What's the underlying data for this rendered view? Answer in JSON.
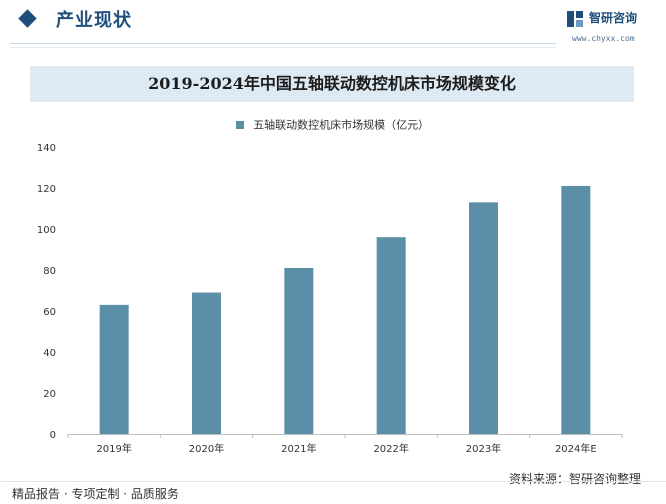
{
  "header": {
    "section_title": "产业现状",
    "logo_name": "智研咨询",
    "logo_url": "www.chyxx.com"
  },
  "colors": {
    "bar": "#5b8fa8",
    "accent": "#1f4e7a",
    "title_band": "#dde9f3"
  },
  "footer": {
    "left": "精品报告 · 专项定制 · 品质服务",
    "right": "资料来源：智研咨询整理"
  },
  "chart_data": {
    "type": "bar",
    "title": "2019-2024年中国五轴联动数控机床市场规模变化",
    "categories": [
      "2019年",
      "2020年",
      "2021年",
      "2022年",
      "2023年",
      "2024年E"
    ],
    "series": [
      {
        "name": "五轴联动数控机床市场规模（亿元）",
        "values": [
          63,
          69,
          81,
          96,
          113,
          121
        ]
      }
    ],
    "xlabel": "",
    "ylabel": "",
    "ylim": [
      0,
      140
    ],
    "yticks": [
      0,
      20,
      40,
      60,
      80,
      100,
      120,
      140
    ],
    "grid": false,
    "legend": "top-center"
  }
}
